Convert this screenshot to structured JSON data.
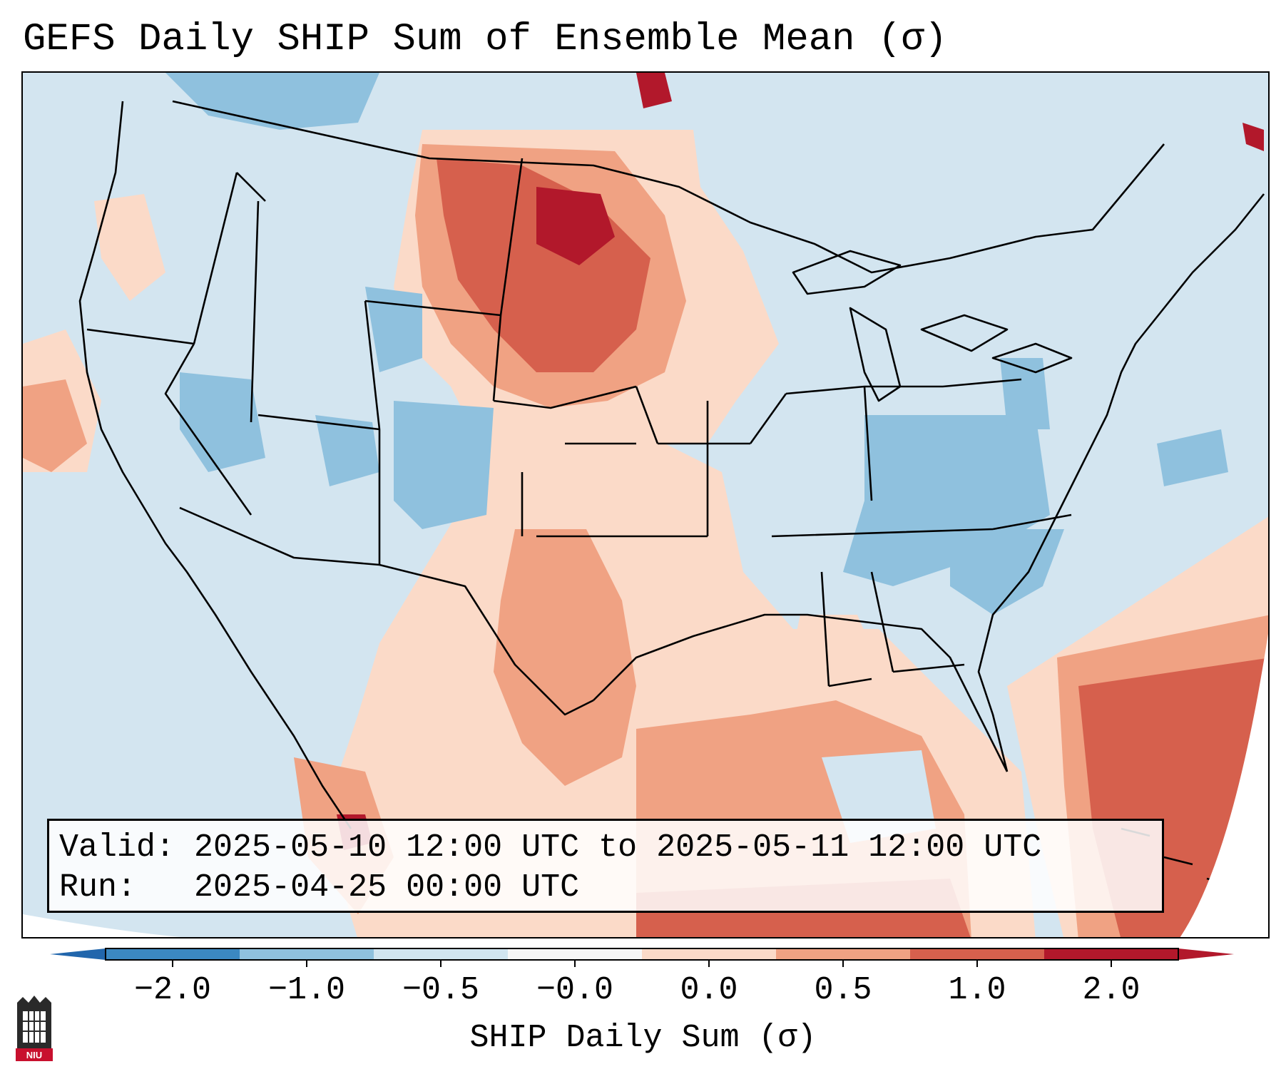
{
  "title": "GEFS Daily SHIP Sum of Ensemble Mean (σ)",
  "info": {
    "valid_label": "Valid:",
    "valid_range": "2025-05-10 12:00 UTC to 2025-05-11 12:00 UTC",
    "run_label": "Run:",
    "run_time": "2025-04-25 00:00 UTC"
  },
  "colorbar": {
    "label": "SHIP Daily Sum (σ)",
    "ticks": [
      "−2.0",
      "−1.0",
      "−0.5",
      "−0.0",
      "0.0",
      "0.5",
      "1.0",
      "2.0"
    ],
    "bin_colors": [
      "#3b88c2",
      "#8fc1de",
      "#d1e5f0",
      "#f7f7f7",
      "#fbdac8",
      "#f0a283",
      "#d6604d",
      "#b2182b"
    ],
    "extend_low_color": "#2166ac",
    "extend_high_color": "#b2182b"
  },
  "palette": {
    "ocean_land_base": "#d3e5f0",
    "neg_0_5_to_1": "#8fc1de",
    "pos_0_to_0_5": "#fbdac8",
    "pos_0_5_to_1": "#f0a283",
    "pos_1_to_2": "#d6604d",
    "pos_gt_2": "#b2182b"
  },
  "logo": {
    "text": "NIU"
  }
}
